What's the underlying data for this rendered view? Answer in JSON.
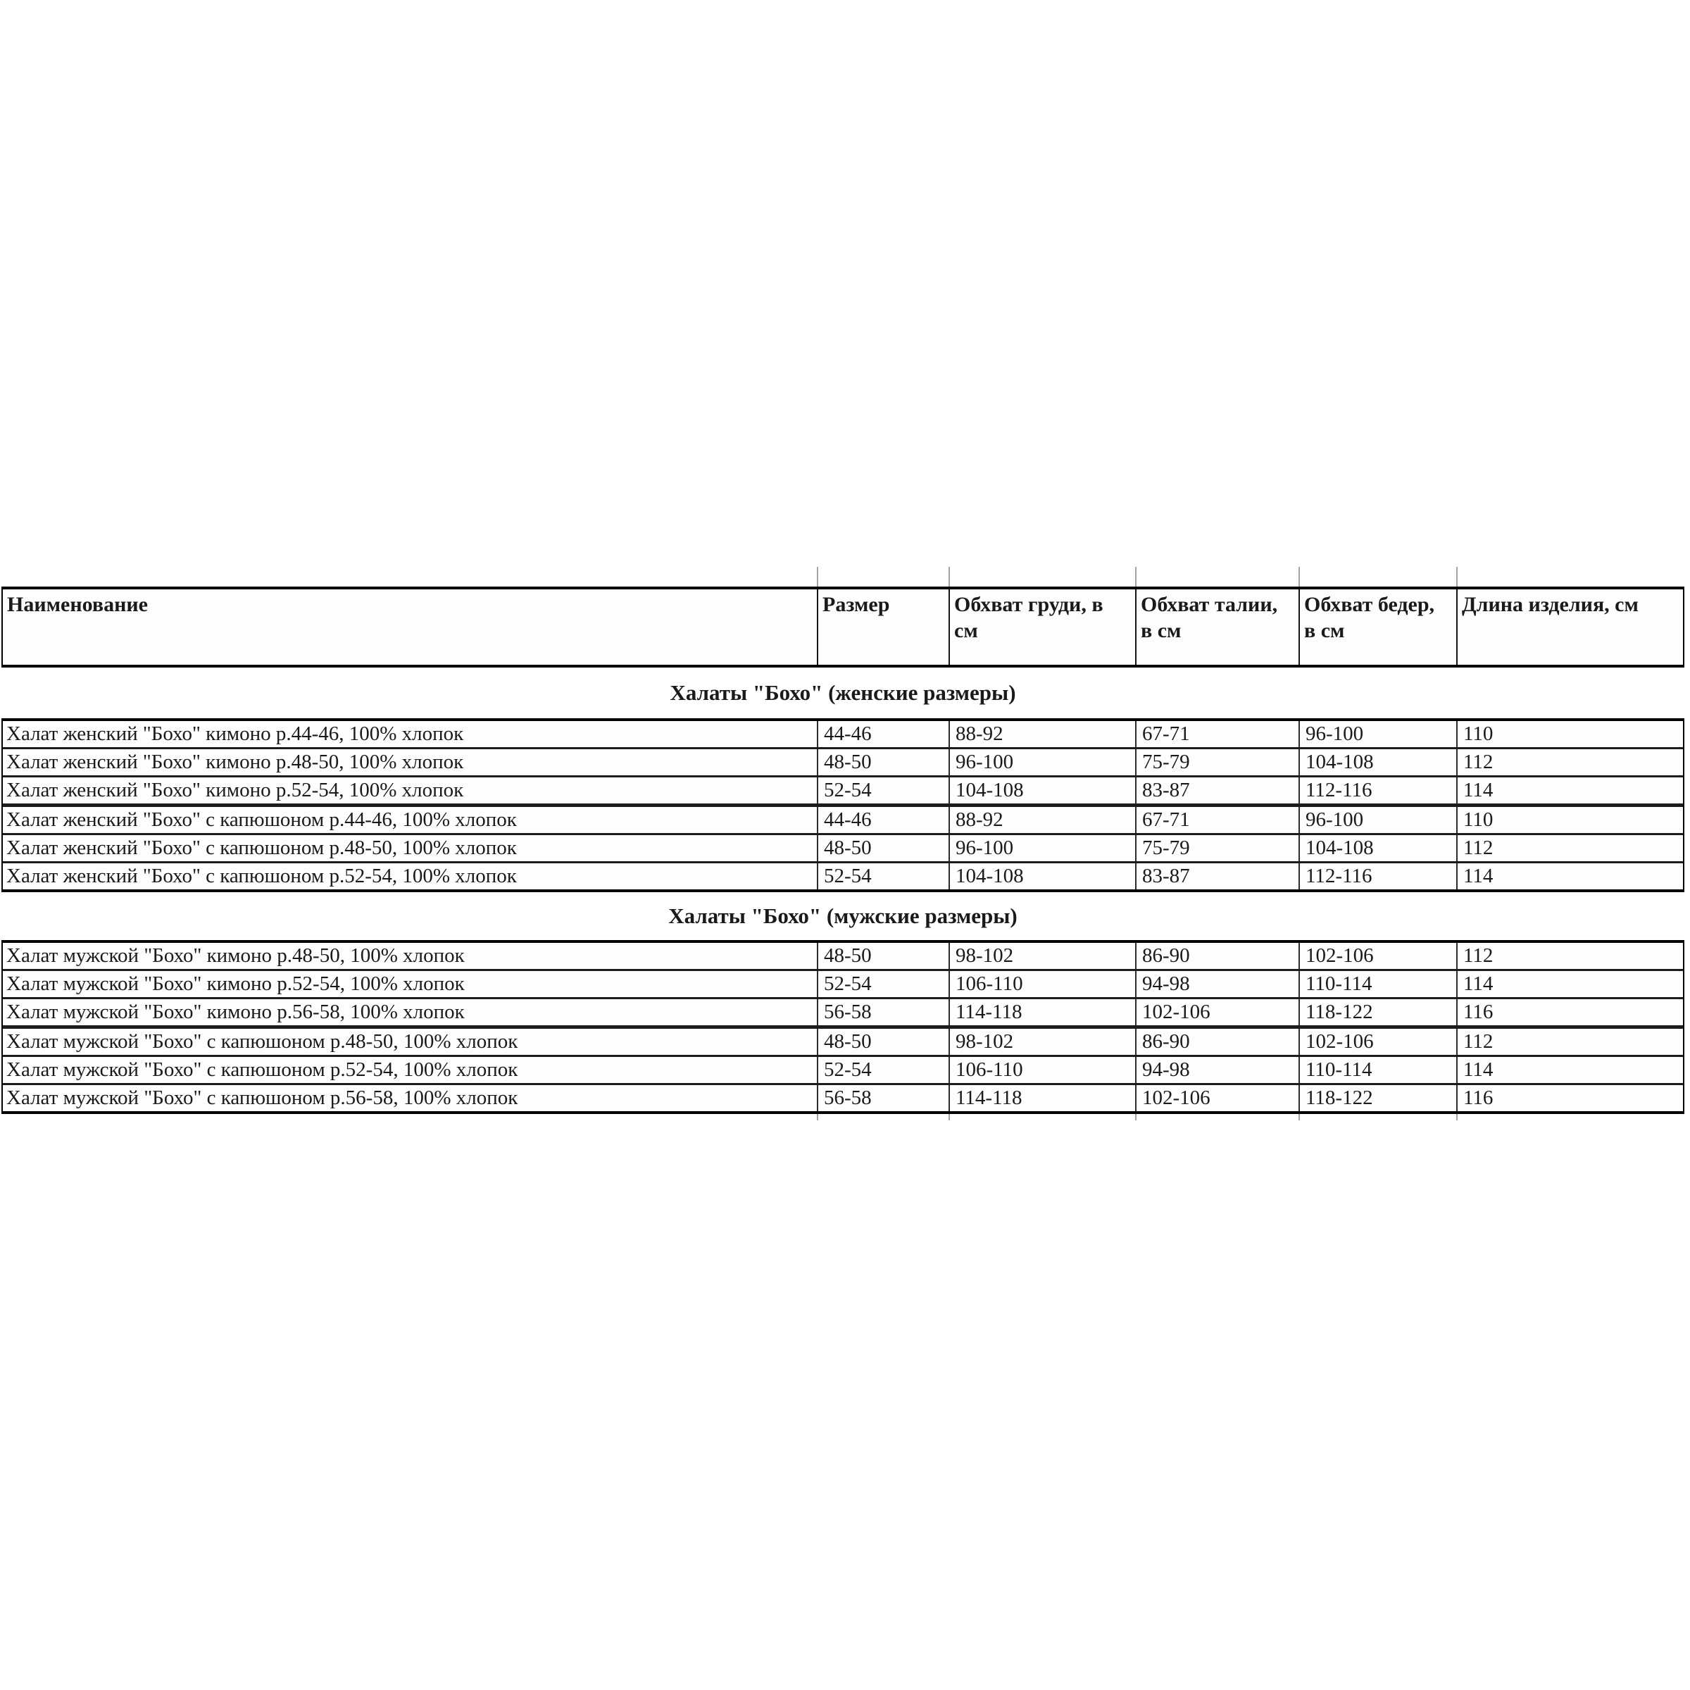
{
  "table": {
    "columns": [
      "Наименование",
      "Размер",
      "Обхват груди, в см",
      "Обхват талии, в см",
      "Обхват бедер, в см",
      "Длина изделия, см"
    ],
    "sections": [
      {
        "title": "Халаты \"Бохо\" (женские размеры)",
        "rows": [
          [
            "Халат женский \"Бохо\" кимоно р.44-46, 100% хлопок",
            "44-46",
            "88-92",
            "67-71",
            "96-100",
            "110"
          ],
          [
            "Халат женский \"Бохо\" кимоно р.48-50, 100% хлопок",
            "48-50",
            "96-100",
            "75-79",
            "104-108",
            "112"
          ],
          [
            "Халат женский \"Бохо\" кимоно р.52-54, 100% хлопок",
            "52-54",
            "104-108",
            "83-87",
            "112-116",
            "114"
          ],
          [
            "Халат женский \"Бохо\" с капюшоном р.44-46, 100% хлопок",
            "44-46",
            "88-92",
            "67-71",
            "96-100",
            "110"
          ],
          [
            "Халат женский \"Бохо\" с капюшоном р.48-50, 100% хлопок",
            "48-50",
            "96-100",
            "75-79",
            "104-108",
            "112"
          ],
          [
            "Халат женский \"Бохо\" с капюшоном р.52-54, 100% хлопок",
            "52-54",
            "104-108",
            "83-87",
            "112-116",
            "114"
          ]
        ]
      },
      {
        "title": "Халаты \"Бохо\" (мужские размеры)",
        "rows": [
          [
            "Халат мужской \"Бохо\" кимоно р.48-50, 100% хлопок",
            "48-50",
            "98-102",
            "86-90",
            "102-106",
            "112"
          ],
          [
            "Халат мужской \"Бохо\" кимоно р.52-54, 100% хлопок",
            "52-54",
            "106-110",
            "94-98",
            "110-114",
            "114"
          ],
          [
            "Халат мужской \"Бохо\" кимоно р.56-58, 100% хлопок",
            "56-58",
            "114-118",
            "102-106",
            "118-122",
            "116"
          ],
          [
            "Халат мужской \"Бохо\" с капюшоном р.48-50, 100% хлопок",
            "48-50",
            "98-102",
            "86-90",
            "102-106",
            "112"
          ],
          [
            "Халат мужской \"Бохо\" с капюшоном р.52-54, 100% хлопок",
            "52-54",
            "106-110",
            "94-98",
            "110-114",
            "114"
          ],
          [
            "Халат мужской \"Бохо\" с капюшоном р.56-58, 100% хлопок",
            "56-58",
            "114-118",
            "102-106",
            "118-122",
            "116"
          ]
        ]
      }
    ],
    "border_colors": {
      "outer": "#000000",
      "row_line": "#1c1c1c",
      "gridline_stub": "#a3a3a3"
    }
  }
}
